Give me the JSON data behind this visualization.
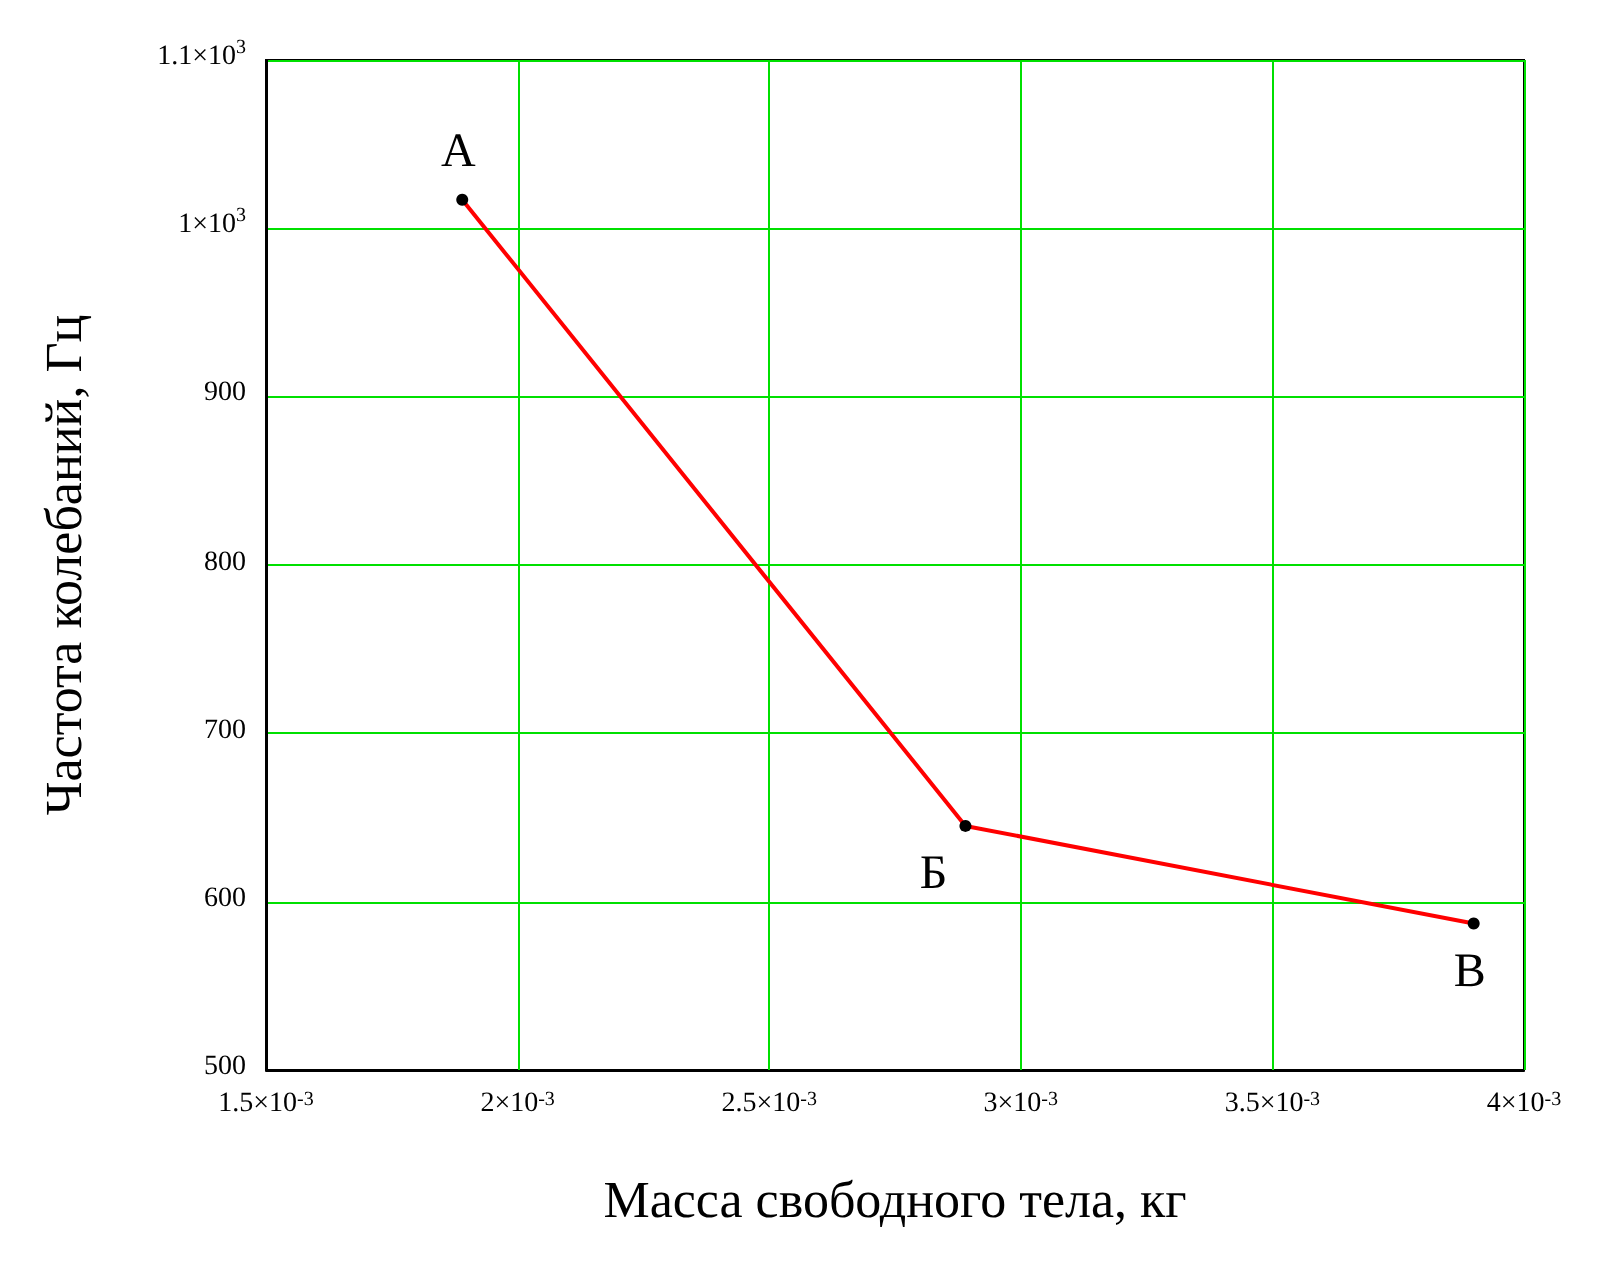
{
  "chart_data": {
    "type": "line",
    "xlabel": "Масса свободного тела, кг",
    "ylabel": "Частота колебаний, Гц",
    "x": [
      0.00189,
      0.00289,
      0.0039
    ],
    "series": [
      {
        "color": "#ff0000",
        "values": [
          1017,
          645,
          587
        ]
      }
    ],
    "xlim": [
      0.0015,
      0.004
    ],
    "xticks": [
      {
        "value": 0.0015,
        "label": "1.5×10$^{-3}$"
      },
      {
        "value": 0.002,
        "label": "2×10$^{-3}$"
      },
      {
        "value": 0.0025,
        "label": "2.5×10$^{-3}$"
      },
      {
        "value": 0.003,
        "label": "3×10$^{-3}$"
      },
      {
        "value": 0.0035,
        "label": "3.5×10$^{-3}$"
      },
      {
        "value": 0.004,
        "label": "4×10$^{-3}$"
      }
    ],
    "ylim": [
      500,
      1100
    ],
    "yticks": [
      500,
      600,
      700,
      800,
      900,
      {
        "value": 1000,
        "label": "1×10$^{3}$"
      },
      {
        "value": 1100,
        "label": "1.1×10$^{3}$"
      }
    ],
    "annotations": [
      {
        "text": "А",
        "x": 0.00189,
        "y": 1017
      },
      {
        "text": "Б",
        "x": 0.00289,
        "y": 645
      },
      {
        "text": "В",
        "x": 0.0039,
        "y": 587
      }
    ],
    "grid": true,
    "marker": "circle",
    "line_style": "solid"
  }
}
